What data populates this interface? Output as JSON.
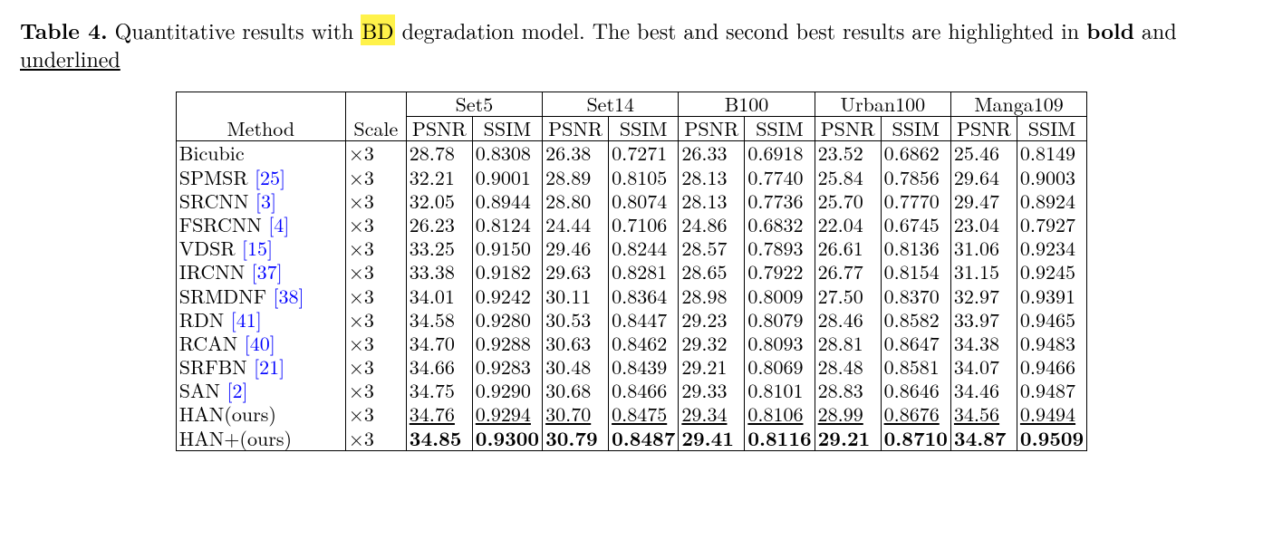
{
  "caption": {
    "label": "Table 4.",
    "text_before_highlight": " Quantitative results with ",
    "highlight": "BD",
    "text_after_highlight": " degradation model. The best and second best results are highlighted in ",
    "bold_word": "bold",
    "and_word": " and ",
    "underlined_word": "underlined"
  },
  "header": {
    "method": "Method",
    "scale": "Scale",
    "datasets": [
      "Set5",
      "Set14",
      "B100",
      "Urban100",
      "Manga109"
    ],
    "metrics": [
      "PSNR",
      "SSIM"
    ]
  },
  "rows": [
    {
      "method": "Bicubic",
      "ref": "",
      "scale": "×3",
      "cells": [
        [
          "28.78",
          "0.8308",
          ""
        ],
        [
          "26.38",
          "0.7271",
          ""
        ],
        [
          "26.33",
          "0.6918",
          ""
        ],
        [
          "23.52",
          "0.6862",
          ""
        ],
        [
          "25.46",
          "0.8149",
          ""
        ]
      ]
    },
    {
      "method": "SPMSR ",
      "ref": "[25]",
      "scale": "×3",
      "cells": [
        [
          "32.21",
          "0.9001",
          ""
        ],
        [
          "28.89",
          "0.8105",
          ""
        ],
        [
          "28.13",
          "0.7740",
          ""
        ],
        [
          "25.84",
          "0.7856",
          ""
        ],
        [
          "29.64",
          "0.9003",
          ""
        ]
      ]
    },
    {
      "method": "SRCNN ",
      "ref": "[3]",
      "scale": "×3",
      "cells": [
        [
          "32.05",
          "0.8944",
          ""
        ],
        [
          "28.80",
          "0.8074",
          ""
        ],
        [
          "28.13",
          "0.7736",
          ""
        ],
        [
          "25.70",
          "0.7770",
          ""
        ],
        [
          "29.47",
          "0.8924",
          ""
        ]
      ]
    },
    {
      "method": "FSRCNN ",
      "ref": "[4]",
      "scale": "×3",
      "cells": [
        [
          "26.23",
          "0.8124",
          ""
        ],
        [
          "24.44",
          "0.7106",
          ""
        ],
        [
          "24.86",
          "0.6832",
          ""
        ],
        [
          "22.04",
          "0.6745",
          ""
        ],
        [
          "23.04",
          "0.7927",
          ""
        ]
      ]
    },
    {
      "method": "VDSR ",
      "ref": "[15]",
      "scale": "×3",
      "cells": [
        [
          "33.25",
          "0.9150",
          ""
        ],
        [
          "29.46",
          "0.8244",
          ""
        ],
        [
          "28.57",
          "0.7893",
          ""
        ],
        [
          "26.61",
          "0.8136",
          ""
        ],
        [
          "31.06",
          "0.9234",
          ""
        ]
      ]
    },
    {
      "method": "IRCNN ",
      "ref": "[37]",
      "scale": "×3",
      "cells": [
        [
          "33.38",
          "0.9182",
          ""
        ],
        [
          "29.63",
          "0.8281",
          ""
        ],
        [
          "28.65",
          "0.7922",
          ""
        ],
        [
          "26.77",
          "0.8154",
          ""
        ],
        [
          "31.15",
          "0.9245",
          ""
        ]
      ]
    },
    {
      "method": "SRMDNF ",
      "ref": "[38]",
      "scale": "×3",
      "cells": [
        [
          "34.01",
          "0.9242",
          ""
        ],
        [
          "30.11",
          "0.8364",
          ""
        ],
        [
          "28.98",
          "0.8009",
          ""
        ],
        [
          "27.50",
          "0.8370",
          ""
        ],
        [
          "32.97",
          "0.9391",
          ""
        ]
      ]
    },
    {
      "method": "RDN ",
      "ref": "[41]",
      "scale": "×3",
      "cells": [
        [
          "34.58",
          "0.9280",
          ""
        ],
        [
          "30.53",
          "0.8447",
          ""
        ],
        [
          "29.23",
          "0.8079",
          ""
        ],
        [
          "28.46",
          "0.8582",
          ""
        ],
        [
          "33.97",
          "0.9465",
          ""
        ]
      ]
    },
    {
      "method": "RCAN ",
      "ref": "[40]",
      "scale": "×3",
      "cells": [
        [
          "34.70",
          "0.9288",
          ""
        ],
        [
          "30.63",
          "0.8462",
          ""
        ],
        [
          "29.32",
          "0.8093",
          ""
        ],
        [
          "28.81",
          "0.8647",
          ""
        ],
        [
          "34.38",
          "0.9483",
          ""
        ]
      ]
    },
    {
      "method": "SRFBN ",
      "ref": "[21]",
      "scale": "×3",
      "cells": [
        [
          "34.66",
          "0.9283",
          ""
        ],
        [
          "30.48",
          "0.8439",
          ""
        ],
        [
          "29.21",
          "0.8069",
          ""
        ],
        [
          "28.48",
          "0.8581",
          ""
        ],
        [
          "34.07",
          "0.9466",
          ""
        ]
      ]
    },
    {
      "method": "SAN ",
      "ref": "[2]",
      "scale": "×3",
      "cells": [
        [
          "34.75",
          "0.9290",
          ""
        ],
        [
          "30.68",
          "0.8466",
          ""
        ],
        [
          "29.33",
          "0.8101",
          ""
        ],
        [
          "28.83",
          "0.8646",
          ""
        ],
        [
          "34.46",
          "0.9487",
          ""
        ]
      ]
    },
    {
      "method": "HAN(ours)",
      "ref": "",
      "scale": "×3",
      "cells": [
        [
          "34.76",
          "0.9294",
          "u"
        ],
        [
          "30.70",
          "0.8475",
          "u"
        ],
        [
          "29.34",
          "0.8106",
          "u"
        ],
        [
          "28.99",
          "0.8676",
          "u"
        ],
        [
          "34.56",
          "0.9494",
          "u"
        ]
      ]
    },
    {
      "method": "HAN+(ours)",
      "ref": "",
      "scale": "×3",
      "cells": [
        [
          "34.85",
          "0.9300",
          "b"
        ],
        [
          "30.79",
          "0.8487",
          "b"
        ],
        [
          "29.41",
          "0.8116",
          "b"
        ],
        [
          "29.21",
          "0.8710",
          "b"
        ],
        [
          "34.87",
          "0.9509",
          "b"
        ]
      ]
    }
  ],
  "style": {
    "ref_color": "#0000ff",
    "highlight_color": "#fff24a"
  }
}
